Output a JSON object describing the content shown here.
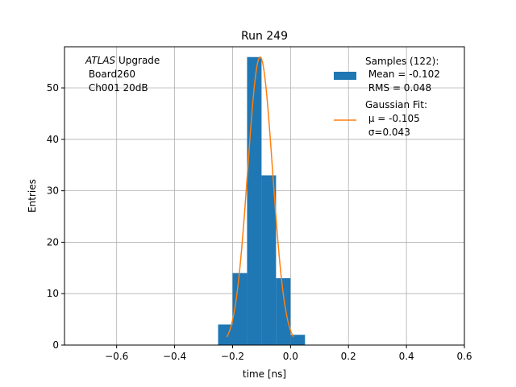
{
  "chart_data": {
    "type": "bar",
    "title": "Run 249",
    "xlabel": "time [ns]",
    "ylabel": "Entries",
    "xlim": [
      -0.78,
      0.6
    ],
    "ylim": [
      0,
      58
    ],
    "xticks": [
      -0.6,
      -0.4,
      -0.2,
      0.0,
      0.2,
      0.4,
      0.6
    ],
    "xtick_labels": [
      "−0.6",
      "−0.4",
      "−0.2",
      "0.0",
      "0.2",
      "0.4",
      "0.6"
    ],
    "yticks": [
      0,
      10,
      20,
      30,
      40,
      50
    ],
    "grid": true,
    "histogram": {
      "name": "Samples (122):",
      "color": "#1f77b4",
      "bins": [
        {
          "x0": -0.25,
          "x1": -0.2,
          "count": 4
        },
        {
          "x0": -0.2,
          "x1": -0.15,
          "count": 14
        },
        {
          "x0": -0.15,
          "x1": -0.1,
          "count": 56
        },
        {
          "x0": -0.1,
          "x1": -0.05,
          "count": 33
        },
        {
          "x0": -0.05,
          "x1": 0.0,
          "count": 13
        },
        {
          "x0": 0.0,
          "x1": 0.05,
          "count": 2
        }
      ]
    },
    "fit": {
      "name": "Gaussian Fit:",
      "color": "#ff7f0e",
      "amplitude": 56,
      "mu": -0.105,
      "sigma": 0.043,
      "x_range": [
        -0.22,
        0.01
      ]
    },
    "annotation": {
      "experiment": "ATLAS",
      "experiment_suffix": " Upgrade",
      "line2": " Board260",
      "line3": " Ch001 20dB"
    },
    "legend": {
      "position": "top-right",
      "samples_title": "Samples (122):",
      "samples_mean": " Mean = -0.102",
      "samples_rms": " RMS = 0.048",
      "fit_title": "Gaussian Fit:",
      "fit_mu": " μ = -0.105",
      "fit_sigma": " σ=0.043"
    }
  }
}
